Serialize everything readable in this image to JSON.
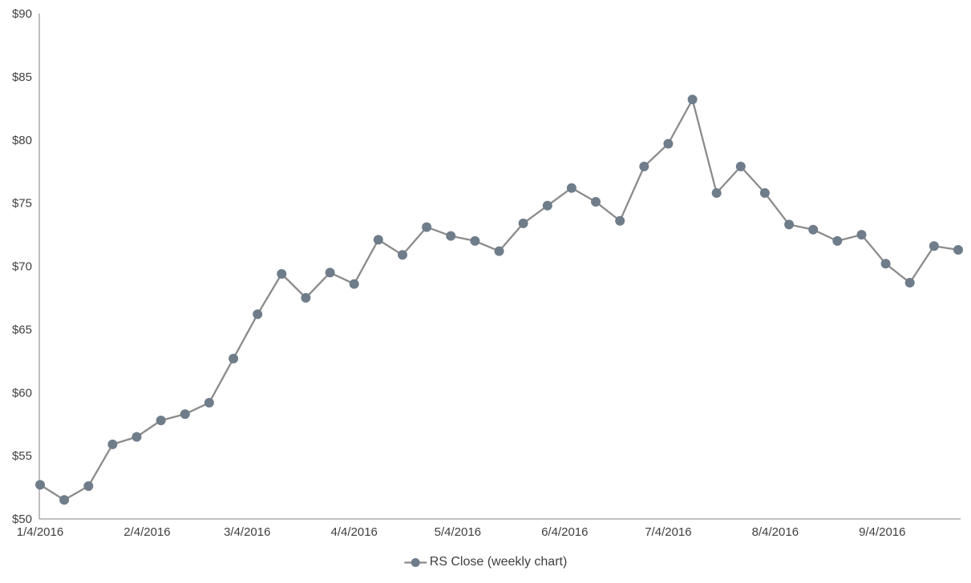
{
  "chart_data": {
    "type": "line",
    "title": "",
    "xlabel": "",
    "ylabel": "",
    "grid": false,
    "marker": "circle",
    "legend": {
      "label": "RS Close (weekly chart)",
      "position": "bottom-center"
    },
    "ylim": [
      50,
      90
    ],
    "ytick_values": [
      50,
      55,
      60,
      65,
      70,
      75,
      80,
      85,
      90
    ],
    "ytick_labels": [
      "$50",
      "$55",
      "$60",
      "$65",
      "$70",
      "$75",
      "$80",
      "$85",
      "$90"
    ],
    "xtick_labels": [
      "1/4/2016",
      "2/4/2016",
      "3/4/2016",
      "4/4/2016",
      "5/4/2016",
      "6/4/2016",
      "7/4/2016",
      "8/4/2016",
      "9/4/2016"
    ],
    "series": [
      {
        "name": "RS Close (weekly chart)",
        "x": [
          "1/4/2016",
          "1/11/2016",
          "1/18/2016",
          "1/25/2016",
          "2/1/2016",
          "2/8/2016",
          "2/15/2016",
          "2/22/2016",
          "2/29/2016",
          "3/7/2016",
          "3/14/2016",
          "3/21/2016",
          "3/28/2016",
          "4/4/2016",
          "4/11/2016",
          "4/18/2016",
          "4/25/2016",
          "5/2/2016",
          "5/9/2016",
          "5/16/2016",
          "5/23/2016",
          "5/30/2016",
          "6/6/2016",
          "6/13/2016",
          "6/20/2016",
          "6/27/2016",
          "7/4/2016",
          "7/11/2016",
          "7/18/2016",
          "7/25/2016",
          "8/1/2016",
          "8/8/2016",
          "8/15/2016",
          "8/22/2016",
          "8/29/2016",
          "9/5/2016",
          "9/12/2016",
          "9/19/2016",
          "9/26/2016"
        ],
        "values": [
          52.7,
          51.5,
          52.6,
          55.9,
          56.5,
          57.8,
          58.3,
          59.2,
          62.7,
          66.2,
          69.4,
          67.5,
          69.5,
          68.6,
          72.1,
          70.9,
          73.1,
          72.4,
          72.0,
          71.2,
          73.4,
          74.8,
          76.2,
          75.1,
          73.6,
          77.9,
          79.7,
          83.2,
          75.8,
          77.9,
          75.8,
          73.3,
          72.9,
          72.0,
          72.5,
          70.2,
          68.7,
          71.6,
          71.3
        ]
      }
    ],
    "colors": {
      "line": "#8b8b8b",
      "marker": "#6f7c8a",
      "axis": "#9d9d9d",
      "label_text": "#3f3f3f"
    }
  }
}
